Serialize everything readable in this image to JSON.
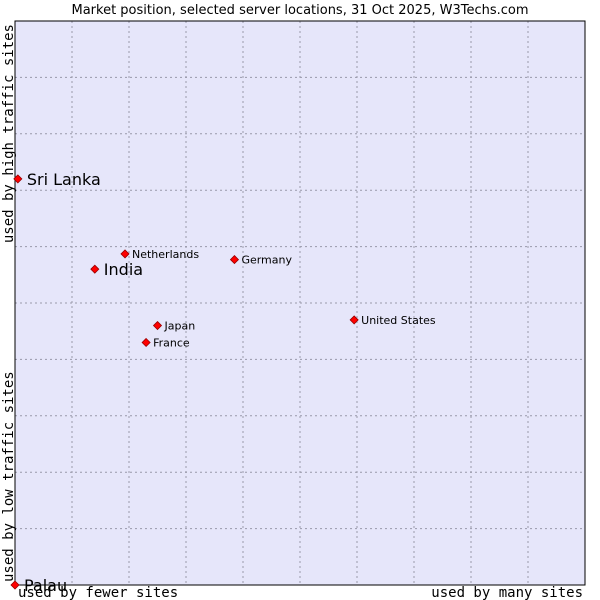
{
  "chart_data": {
    "type": "scatter",
    "title": "Market position, selected server locations, 31 Oct 2025, W3Techs.com",
    "xlabel_left": "used by fewer sites",
    "xlabel_right": "used by many sites",
    "ylabel_top": "used by high traffic sites",
    "ylabel_bottom": "used by low traffic sites",
    "xlim": [
      0,
      10
    ],
    "ylim": [
      0,
      10
    ],
    "grid": true,
    "colors": {
      "background": "#e6e6fa",
      "grid": "#9999aa",
      "border": "#000000",
      "point": "#ff0000",
      "point_outline": "#990000"
    },
    "points": [
      {
        "label": "Sri Lanka",
        "x": 0.05,
        "y": 7.2,
        "emphasis": true
      },
      {
        "label": "India",
        "x": 1.4,
        "y": 5.6,
        "emphasis": true
      },
      {
        "label": "Netherlands",
        "x": 1.93,
        "y": 5.87,
        "emphasis": false
      },
      {
        "label": "Germany",
        "x": 3.85,
        "y": 5.77,
        "emphasis": false
      },
      {
        "label": "United States",
        "x": 5.95,
        "y": 4.7,
        "emphasis": false
      },
      {
        "label": "Japan",
        "x": 2.5,
        "y": 4.6,
        "emphasis": false
      },
      {
        "label": "France",
        "x": 2.3,
        "y": 4.3,
        "emphasis": false
      },
      {
        "label": "Palau",
        "x": 0.0,
        "y": 0.0,
        "emphasis": true
      }
    ]
  }
}
